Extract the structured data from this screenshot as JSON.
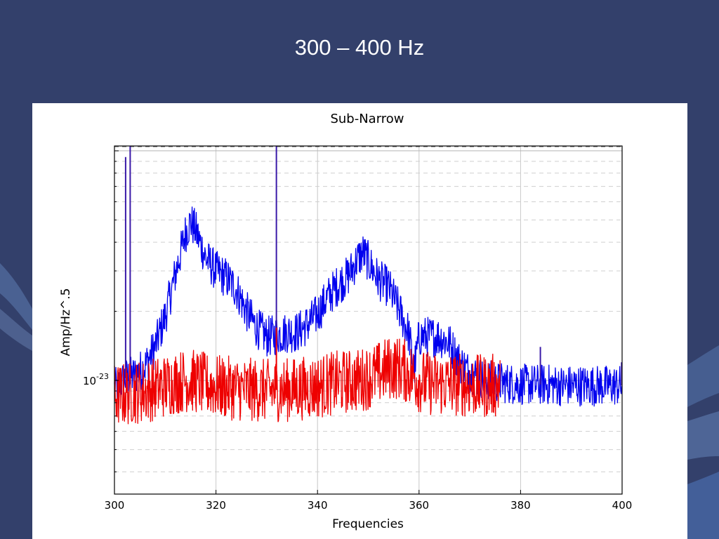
{
  "slide": {
    "title": "300 – 400 Hz",
    "background_color": "#33406b"
  },
  "chart_data": {
    "type": "line",
    "title": "Sub-Narrow",
    "xlabel": "Frequencies",
    "ylabel": "Amp/Hz^.5",
    "y_scale": "log",
    "xlim": [
      300,
      400
    ],
    "ylim": [
      3.2e-24,
      1.05e-22
    ],
    "x_ticks": [
      300,
      320,
      340,
      360,
      380,
      400
    ],
    "y_tick_label": {
      "base": "10",
      "exponent": "-23",
      "value": 1e-23
    },
    "grid": true,
    "series": [
      {
        "color": "#0000ee",
        "points": [
          [
            300,
            9.2e-24
          ],
          [
            301,
            9.5e-24
          ],
          [
            302,
            1.02e-23
          ],
          [
            304,
            1.05e-23
          ],
          [
            306,
            1.15e-23
          ],
          [
            308,
            1.4e-23
          ],
          [
            310,
            1.9e-23
          ],
          [
            312,
            2.9e-23
          ],
          [
            314,
            4.4e-23
          ],
          [
            315,
            4.9e-23
          ],
          [
            316,
            4.5e-23
          ],
          [
            318,
            3.4e-23
          ],
          [
            320,
            3e-23
          ],
          [
            322,
            2.8e-23
          ],
          [
            324,
            2.5e-23
          ],
          [
            326,
            2e-23
          ],
          [
            328,
            1.7e-23
          ],
          [
            330,
            1.55e-23
          ],
          [
            332,
            1.58e-23
          ],
          [
            334,
            1.62e-23
          ],
          [
            336,
            1.62e-23
          ],
          [
            338,
            1.75e-23
          ],
          [
            340,
            1.95e-23
          ],
          [
            342,
            2.3e-23
          ],
          [
            344,
            2.6e-23
          ],
          [
            346,
            2.85e-23
          ],
          [
            348,
            3.4e-23
          ],
          [
            349,
            3.6e-23
          ],
          [
            350,
            3.3e-23
          ],
          [
            352,
            2.75e-23
          ],
          [
            354,
            2.55e-23
          ],
          [
            356,
            2.05e-23
          ],
          [
            358,
            1.6e-23
          ],
          [
            359,
            1.1e-23
          ],
          [
            360,
            1.55e-23
          ],
          [
            362,
            1.55e-23
          ],
          [
            364,
            1.55e-23
          ],
          [
            366,
            1.45e-23
          ],
          [
            368,
            1.2e-23
          ],
          [
            370,
            1.08e-23
          ],
          [
            372,
            1.03e-23
          ],
          [
            374,
            1e-23
          ],
          [
            376,
            9.8e-24
          ],
          [
            378,
            9.7e-24
          ],
          [
            380,
            9.6e-24
          ],
          [
            382,
            9.6e-24
          ],
          [
            384,
            9.6e-24
          ],
          [
            386,
            9.6e-24
          ],
          [
            388,
            9.5e-24
          ],
          [
            390,
            9.5e-24
          ],
          [
            392,
            9.5e-24
          ],
          [
            394,
            9.5e-24
          ],
          [
            396,
            9.5e-24
          ],
          [
            398,
            9.5e-24
          ],
          [
            400,
            9.5e-24
          ]
        ],
        "spikes": [
          [
            302.2,
            9.4e-23
          ],
          [
            303.1,
            1.05e-22
          ],
          [
            331.9,
            1.05e-22
          ],
          [
            383.9,
            1.4e-23
          ],
          [
            399.9,
            1.2e-23
          ]
        ]
      },
      {
        "color": "#ee0000",
        "points": [
          [
            300,
            8.6e-24
          ],
          [
            302,
            8.7e-24
          ],
          [
            304,
            8.9e-24
          ],
          [
            306,
            9e-24
          ],
          [
            308,
            9.2e-24
          ],
          [
            310,
            9.5e-24
          ],
          [
            312,
            9.8e-24
          ],
          [
            314,
            1e-23
          ],
          [
            316,
            9.9e-24
          ],
          [
            318,
            9.6e-24
          ],
          [
            320,
            9.4e-24
          ],
          [
            322,
            9.3e-24
          ],
          [
            324,
            9.2e-24
          ],
          [
            326,
            9.1e-24
          ],
          [
            328,
            9.1e-24
          ],
          [
            330,
            9e-24
          ],
          [
            332,
            9.1e-24
          ],
          [
            334,
            9.1e-24
          ],
          [
            336,
            9.2e-24
          ],
          [
            338,
            9.3e-24
          ],
          [
            340,
            9.4e-24
          ],
          [
            342,
            9.6e-24
          ],
          [
            344,
            9.8e-24
          ],
          [
            346,
            9.9e-24
          ],
          [
            348,
            1e-23
          ],
          [
            350,
            1.03e-23
          ],
          [
            352,
            1.07e-23
          ],
          [
            354,
            1.13e-23
          ],
          [
            356,
            1.14e-23
          ],
          [
            358,
            1.08e-23
          ],
          [
            360,
            1e-23
          ],
          [
            362,
            9.7e-24
          ],
          [
            364,
            9.6e-24
          ],
          [
            366,
            9.7e-24
          ],
          [
            368,
            9.6e-24
          ],
          [
            370,
            9.5e-24
          ],
          [
            372,
            9.4e-24
          ],
          [
            374,
            9.5e-24
          ],
          [
            376,
            9.5e-24
          ]
        ],
        "spikes": [
          [
            331.9,
            1.7e-23
          ],
          [
            352.0,
            1.3e-23
          ]
        ]
      }
    ]
  }
}
